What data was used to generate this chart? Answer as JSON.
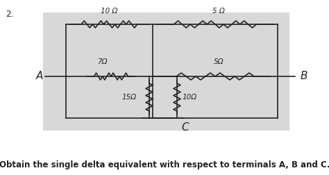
{
  "title_number": "2.",
  "box_bg": "#d8d8d8",
  "outer_bg": "#ffffff",
  "text_bottom": "Obtain the single delta equivalent with respect to terminals A, B and C.",
  "text_color": "#000000",
  "labels": {
    "top_left": "10 Ω",
    "top_right": "5 Ω",
    "mid_left": "7Ω",
    "mid_right": "5Ω",
    "bot_left": "15Ω",
    "bot_right": "10Ω",
    "A": "A",
    "B": "B",
    "C": "C"
  },
  "lw": 1.2,
  "line_color": "#222222"
}
